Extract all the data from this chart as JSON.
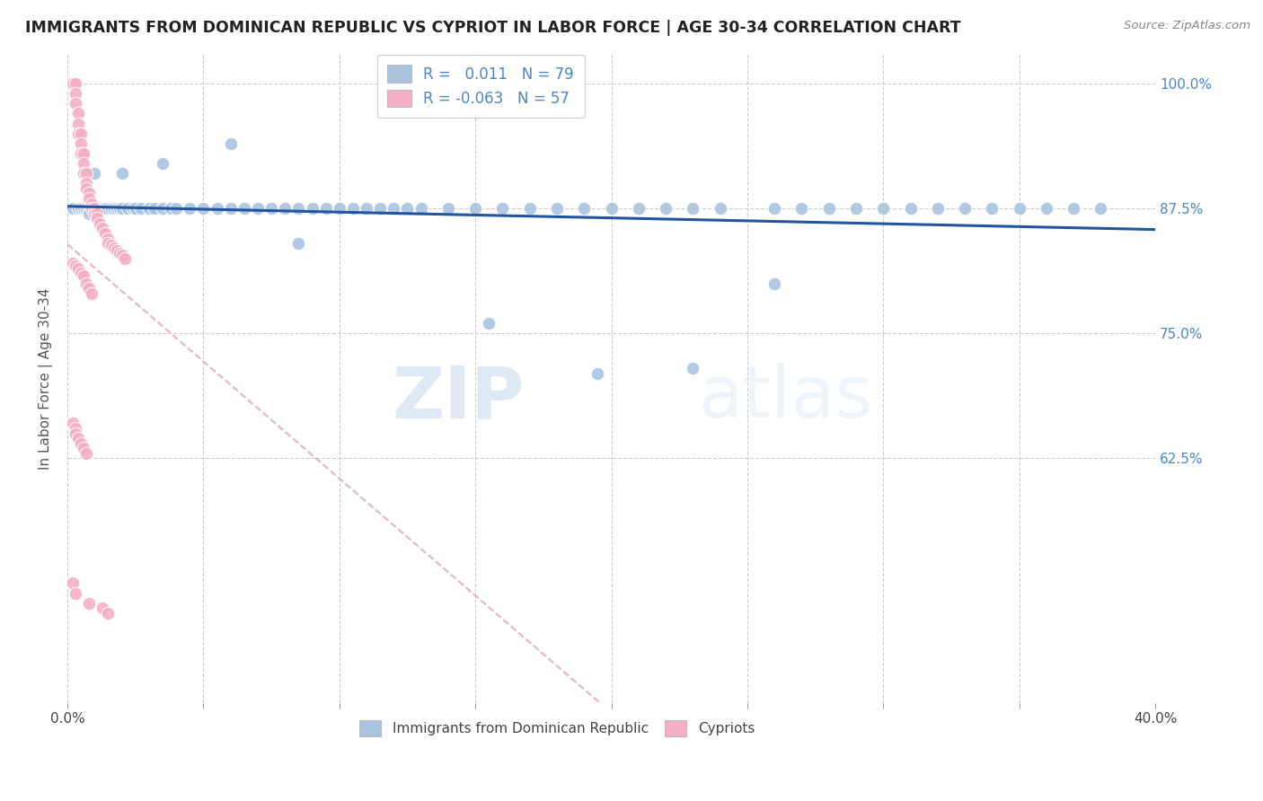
{
  "title": "IMMIGRANTS FROM DOMINICAN REPUBLIC VS CYPRIOT IN LABOR FORCE | AGE 30-34 CORRELATION CHART",
  "source": "Source: ZipAtlas.com",
  "ylabel": "In Labor Force | Age 30-34",
  "ytick_labels": [
    "100.0%",
    "87.5%",
    "75.0%",
    "62.5%"
  ],
  "ytick_values": [
    1.0,
    0.875,
    0.75,
    0.625
  ],
  "xlim": [
    0.0,
    0.4
  ],
  "ylim": [
    0.38,
    1.03
  ],
  "legend_r_blue": "0.011",
  "legend_n_blue": "79",
  "legend_r_pink": "-0.063",
  "legend_n_pink": "57",
  "blue_color": "#aac4e0",
  "pink_color": "#f4afc4",
  "trend_blue_color": "#2255a0",
  "trend_pink_color": "#e0a0b8",
  "watermark_zip": "ZIP",
  "watermark_atlas": "atlas",
  "blue_scatter_x": [
    0.002,
    0.004,
    0.005,
    0.006,
    0.007,
    0.008,
    0.009,
    0.01,
    0.011,
    0.012,
    0.013,
    0.014,
    0.015,
    0.016,
    0.017,
    0.018,
    0.019,
    0.02,
    0.022,
    0.024,
    0.025,
    0.027,
    0.03,
    0.032,
    0.035,
    0.038,
    0.04,
    0.045,
    0.05,
    0.055,
    0.06,
    0.065,
    0.07,
    0.075,
    0.08,
    0.085,
    0.09,
    0.095,
    0.1,
    0.105,
    0.11,
    0.115,
    0.12,
    0.125,
    0.13,
    0.14,
    0.15,
    0.16,
    0.17,
    0.18,
    0.19,
    0.2,
    0.21,
    0.22,
    0.23,
    0.24,
    0.26,
    0.27,
    0.28,
    0.29,
    0.3,
    0.31,
    0.32,
    0.33,
    0.34,
    0.35,
    0.36,
    0.37,
    0.38,
    0.23,
    0.26,
    0.195,
    0.155,
    0.085,
    0.06,
    0.035,
    0.02,
    0.01,
    0.008
  ],
  "blue_scatter_y": [
    0.875,
    0.875,
    0.875,
    0.875,
    0.875,
    0.875,
    0.875,
    0.875,
    0.875,
    0.875,
    0.875,
    0.875,
    0.875,
    0.875,
    0.875,
    0.875,
    0.875,
    0.875,
    0.875,
    0.875,
    0.875,
    0.875,
    0.875,
    0.875,
    0.875,
    0.875,
    0.875,
    0.875,
    0.875,
    0.875,
    0.875,
    0.875,
    0.875,
    0.875,
    0.875,
    0.875,
    0.875,
    0.875,
    0.875,
    0.875,
    0.875,
    0.875,
    0.875,
    0.875,
    0.875,
    0.875,
    0.875,
    0.875,
    0.875,
    0.875,
    0.875,
    0.875,
    0.875,
    0.875,
    0.875,
    0.875,
    0.875,
    0.875,
    0.875,
    0.875,
    0.875,
    0.875,
    0.875,
    0.875,
    0.875,
    0.875,
    0.875,
    0.875,
    0.875,
    0.715,
    0.8,
    0.71,
    0.76,
    0.84,
    0.94,
    0.92,
    0.91,
    0.91,
    0.87
  ],
  "pink_scatter_x": [
    0.001,
    0.002,
    0.002,
    0.003,
    0.003,
    0.003,
    0.004,
    0.004,
    0.004,
    0.005,
    0.005,
    0.005,
    0.006,
    0.006,
    0.006,
    0.007,
    0.007,
    0.007,
    0.008,
    0.008,
    0.009,
    0.009,
    0.01,
    0.01,
    0.011,
    0.011,
    0.012,
    0.013,
    0.014,
    0.015,
    0.015,
    0.016,
    0.017,
    0.018,
    0.019,
    0.02,
    0.021,
    0.002,
    0.003,
    0.004,
    0.005,
    0.006,
    0.007,
    0.008,
    0.009,
    0.002,
    0.003,
    0.003,
    0.004,
    0.005,
    0.006,
    0.007,
    0.002,
    0.003,
    0.008,
    0.013,
    0.015
  ],
  "pink_scatter_y": [
    1.0,
    1.0,
    1.0,
    1.0,
    0.99,
    0.98,
    0.97,
    0.96,
    0.95,
    0.95,
    0.94,
    0.93,
    0.93,
    0.92,
    0.91,
    0.91,
    0.9,
    0.895,
    0.89,
    0.885,
    0.88,
    0.875,
    0.875,
    0.87,
    0.87,
    0.865,
    0.86,
    0.855,
    0.85,
    0.845,
    0.84,
    0.838,
    0.836,
    0.833,
    0.83,
    0.828,
    0.825,
    0.82,
    0.818,
    0.815,
    0.81,
    0.808,
    0.8,
    0.795,
    0.79,
    0.66,
    0.655,
    0.65,
    0.645,
    0.64,
    0.635,
    0.63,
    0.5,
    0.49,
    0.48,
    0.475,
    0.47
  ]
}
